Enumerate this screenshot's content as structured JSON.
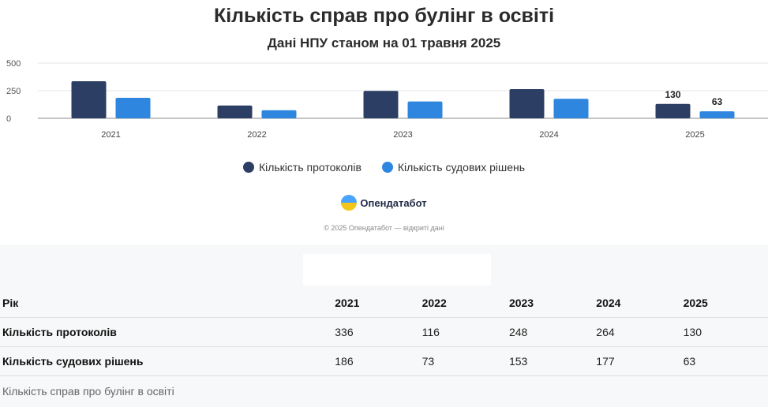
{
  "title": "Кількість справ про булінг в освіті",
  "subtitle": "Дані НПУ станом на 01 травня 2025",
  "colors": {
    "protocols": "#2c3e63",
    "decisions": "#2e86de"
  },
  "chart_data": {
    "type": "bar",
    "categories": [
      "2021",
      "2022",
      "2023",
      "2024",
      "2025"
    ],
    "series": [
      {
        "name": "Кількість протоколів",
        "values": [
          336,
          116,
          248,
          264,
          130
        ]
      },
      {
        "name": "Кількість судових рішень",
        "values": [
          186,
          73,
          153,
          177,
          63
        ]
      }
    ],
    "yticks": [
      0,
      250,
      500
    ],
    "ylim": [
      0,
      500
    ],
    "data_labels": {
      "category": "2025",
      "values": [
        "130",
        "63"
      ]
    },
    "legend": "bottom"
  },
  "legend": [
    "Кількість протоколів",
    "Кількість судових рішень"
  ],
  "brand": "Опендатабот",
  "copyright": "© 2025 Опендатабот — відкриті дані",
  "table": {
    "headers": [
      "Рік",
      "2021",
      "2022",
      "2023",
      "2024",
      "2025"
    ],
    "rows": [
      [
        "Кількість протоколів",
        "336",
        "116",
        "248",
        "264",
        "130"
      ],
      [
        "Кількість судових рішень",
        "186",
        "73",
        "153",
        "177",
        "63"
      ]
    ],
    "caption": "Кількість справ про булінг в освіті"
  }
}
